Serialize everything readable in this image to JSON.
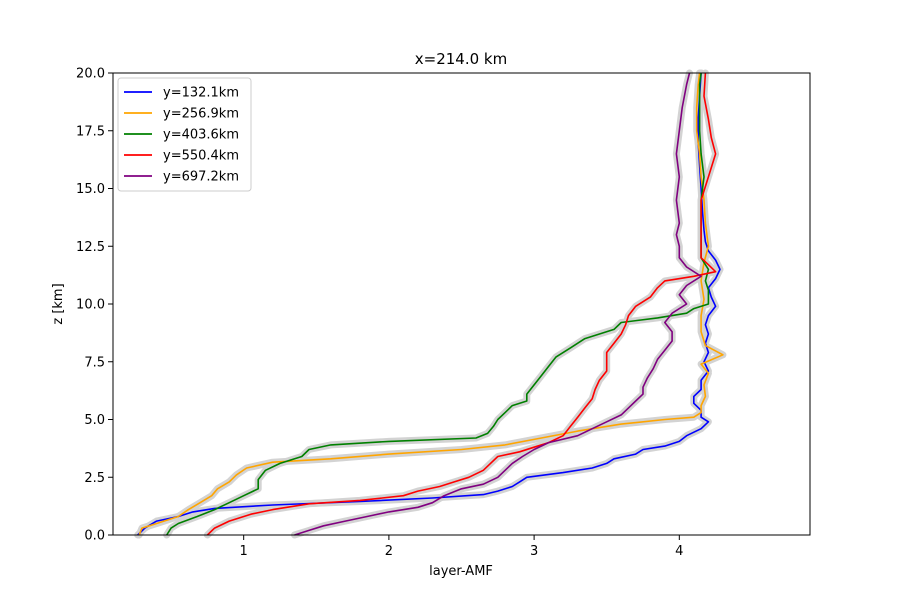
{
  "chart_data": {
    "type": "line",
    "title": "x=214.0 km",
    "xlabel": "layer-AMF",
    "ylabel": "z [km]",
    "xlim": [
      0.1,
      4.9
    ],
    "ylim": [
      0,
      20
    ],
    "xticks": [
      1,
      2,
      3,
      4
    ],
    "xtick_labels": [
      "1",
      "2",
      "3",
      "4"
    ],
    "yticks": [
      0,
      2.5,
      5,
      7.5,
      10,
      12.5,
      15,
      17.5,
      20
    ],
    "ytick_labels": [
      "0.0",
      "2.5",
      "5.0",
      "7.5",
      "10.0",
      "12.5",
      "15.0",
      "17.5",
      "20.0"
    ],
    "grid": false,
    "legend_position": "top-left",
    "uncertainty_band_color": "#d3d3d3",
    "series": [
      {
        "name": "y=132.1km",
        "color": "#0000ff",
        "points": [
          [
            0.27,
            0
          ],
          [
            0.32,
            0.3
          ],
          [
            0.4,
            0.6
          ],
          [
            0.55,
            0.8
          ],
          [
            0.65,
            1.0
          ],
          [
            0.8,
            1.15
          ],
          [
            1.2,
            1.3
          ],
          [
            1.8,
            1.45
          ],
          [
            2.3,
            1.6
          ],
          [
            2.65,
            1.75
          ],
          [
            2.75,
            1.9
          ],
          [
            2.85,
            2.1
          ],
          [
            2.9,
            2.3
          ],
          [
            2.95,
            2.5
          ],
          [
            3.2,
            2.7
          ],
          [
            3.4,
            2.9
          ],
          [
            3.5,
            3.1
          ],
          [
            3.55,
            3.3
          ],
          [
            3.7,
            3.5
          ],
          [
            3.75,
            3.7
          ],
          [
            3.9,
            3.85
          ],
          [
            4.0,
            4.05
          ],
          [
            4.05,
            4.3
          ],
          [
            4.15,
            4.6
          ],
          [
            4.2,
            4.9
          ],
          [
            4.15,
            5.1
          ],
          [
            4.15,
            5.4
          ],
          [
            4.1,
            5.7
          ],
          [
            4.1,
            6.0
          ],
          [
            4.15,
            6.3
          ],
          [
            4.15,
            6.7
          ],
          [
            4.2,
            7.1
          ],
          [
            4.17,
            7.5
          ],
          [
            4.2,
            7.9
          ],
          [
            4.18,
            8.3
          ],
          [
            4.2,
            8.7
          ],
          [
            4.18,
            9.1
          ],
          [
            4.2,
            9.5
          ],
          [
            4.25,
            9.9
          ],
          [
            4.22,
            10.3
          ],
          [
            4.2,
            10.7
          ],
          [
            4.25,
            11.1
          ],
          [
            4.28,
            11.5
          ],
          [
            4.25,
            11.9
          ],
          [
            4.2,
            12.3
          ],
          [
            4.18,
            12.7
          ],
          [
            4.17,
            13.2
          ],
          [
            4.16,
            14.0
          ],
          [
            4.15,
            15.0
          ],
          [
            4.14,
            16.0
          ],
          [
            4.13,
            17.0
          ],
          [
            4.13,
            18.0
          ],
          [
            4.14,
            19.0
          ],
          [
            4.15,
            20.0
          ]
        ]
      },
      {
        "name": "y=256.9km",
        "color": "#ffa500",
        "points": [
          [
            0.28,
            0
          ],
          [
            0.3,
            0.3
          ],
          [
            0.4,
            0.5
          ],
          [
            0.55,
            0.8
          ],
          [
            0.62,
            1.1
          ],
          [
            0.7,
            1.4
          ],
          [
            0.78,
            1.7
          ],
          [
            0.82,
            2.0
          ],
          [
            0.9,
            2.3
          ],
          [
            0.95,
            2.6
          ],
          [
            1.02,
            2.9
          ],
          [
            1.2,
            3.15
          ],
          [
            1.6,
            3.3
          ],
          [
            2.0,
            3.5
          ],
          [
            2.5,
            3.7
          ],
          [
            2.8,
            3.9
          ],
          [
            3.05,
            4.2
          ],
          [
            3.3,
            4.5
          ],
          [
            3.6,
            4.8
          ],
          [
            3.9,
            5.0
          ],
          [
            4.1,
            5.1
          ],
          [
            4.15,
            5.3
          ],
          [
            4.15,
            5.6
          ],
          [
            4.18,
            6.0
          ],
          [
            4.17,
            6.5
          ],
          [
            4.2,
            7.0
          ],
          [
            4.15,
            7.4
          ],
          [
            4.3,
            7.8
          ],
          [
            4.18,
            8.2
          ],
          [
            4.15,
            8.8
          ],
          [
            4.15,
            9.5
          ],
          [
            4.17,
            10.2
          ],
          [
            4.15,
            11.0
          ],
          [
            4.17,
            11.8
          ],
          [
            4.2,
            12.5
          ],
          [
            4.18,
            13.5
          ],
          [
            4.17,
            14.5
          ],
          [
            4.15,
            15.5
          ],
          [
            4.14,
            16.5
          ],
          [
            4.12,
            17.5
          ],
          [
            4.12,
            18.5
          ],
          [
            4.13,
            19.5
          ],
          [
            4.14,
            20.0
          ]
        ]
      },
      {
        "name": "y=403.6km",
        "color": "#008000",
        "points": [
          [
            0.47,
            0
          ],
          [
            0.5,
            0.3
          ],
          [
            0.55,
            0.5
          ],
          [
            0.68,
            0.8
          ],
          [
            0.8,
            1.1
          ],
          [
            0.9,
            1.4
          ],
          [
            1.0,
            1.7
          ],
          [
            1.1,
            2.0
          ],
          [
            1.1,
            2.4
          ],
          [
            1.15,
            2.8
          ],
          [
            1.25,
            3.1
          ],
          [
            1.4,
            3.4
          ],
          [
            1.45,
            3.7
          ],
          [
            1.6,
            3.9
          ],
          [
            2.0,
            4.05
          ],
          [
            2.6,
            4.2
          ],
          [
            2.68,
            4.4
          ],
          [
            2.72,
            4.7
          ],
          [
            2.75,
            5.0
          ],
          [
            2.8,
            5.3
          ],
          [
            2.85,
            5.6
          ],
          [
            2.95,
            5.8
          ],
          [
            2.95,
            6.1
          ],
          [
            3.0,
            6.5
          ],
          [
            3.05,
            6.9
          ],
          [
            3.1,
            7.3
          ],
          [
            3.15,
            7.7
          ],
          [
            3.25,
            8.1
          ],
          [
            3.35,
            8.5
          ],
          [
            3.55,
            8.9
          ],
          [
            3.6,
            9.2
          ],
          [
            3.85,
            9.4
          ],
          [
            4.05,
            9.6
          ],
          [
            4.1,
            9.8
          ],
          [
            4.2,
            10.0
          ],
          [
            4.2,
            10.3
          ],
          [
            4.2,
            10.6
          ],
          [
            4.18,
            11.0
          ],
          [
            4.2,
            11.5
          ],
          [
            4.15,
            12.0
          ],
          [
            4.15,
            12.6
          ],
          [
            4.15,
            13.5
          ],
          [
            4.15,
            14.5
          ],
          [
            4.17,
            15.5
          ],
          [
            4.15,
            16.5
          ],
          [
            4.14,
            17.5
          ],
          [
            4.14,
            18.5
          ],
          [
            4.14,
            19.5
          ],
          [
            4.15,
            20.0
          ]
        ]
      },
      {
        "name": "y=550.4km",
        "color": "#ff0000",
        "points": [
          [
            0.75,
            0
          ],
          [
            0.8,
            0.3
          ],
          [
            0.9,
            0.6
          ],
          [
            1.05,
            0.9
          ],
          [
            1.2,
            1.1
          ],
          [
            1.45,
            1.35
          ],
          [
            1.8,
            1.5
          ],
          [
            2.1,
            1.7
          ],
          [
            2.2,
            1.9
          ],
          [
            2.35,
            2.1
          ],
          [
            2.45,
            2.3
          ],
          [
            2.55,
            2.5
          ],
          [
            2.65,
            2.8
          ],
          [
            2.7,
            3.1
          ],
          [
            2.75,
            3.4
          ],
          [
            2.9,
            3.6
          ],
          [
            3.0,
            3.8
          ],
          [
            3.1,
            4.0
          ],
          [
            3.2,
            4.3
          ],
          [
            3.25,
            4.7
          ],
          [
            3.3,
            5.1
          ],
          [
            3.35,
            5.5
          ],
          [
            3.4,
            5.9
          ],
          [
            3.42,
            6.3
          ],
          [
            3.45,
            6.7
          ],
          [
            3.5,
            7.1
          ],
          [
            3.5,
            7.5
          ],
          [
            3.5,
            7.9
          ],
          [
            3.55,
            8.3
          ],
          [
            3.6,
            8.7
          ],
          [
            3.63,
            9.1
          ],
          [
            3.65,
            9.5
          ],
          [
            3.7,
            9.9
          ],
          [
            3.8,
            10.3
          ],
          [
            3.85,
            10.7
          ],
          [
            3.9,
            11.0
          ],
          [
            4.1,
            11.2
          ],
          [
            4.25,
            11.4
          ],
          [
            4.2,
            11.7
          ],
          [
            4.15,
            12.0
          ],
          [
            4.15,
            12.5
          ],
          [
            4.15,
            13.5
          ],
          [
            4.15,
            14.5
          ],
          [
            4.2,
            15.5
          ],
          [
            4.25,
            16.5
          ],
          [
            4.22,
            17.2
          ],
          [
            4.2,
            18.0
          ],
          [
            4.17,
            19.0
          ],
          [
            4.18,
            20.0
          ]
        ]
      },
      {
        "name": "y=697.2km",
        "color": "#800080",
        "points": [
          [
            1.35,
            0
          ],
          [
            1.45,
            0.2
          ],
          [
            1.55,
            0.4
          ],
          [
            1.7,
            0.6
          ],
          [
            1.85,
            0.8
          ],
          [
            2.0,
            1.0
          ],
          [
            2.2,
            1.2
          ],
          [
            2.3,
            1.4
          ],
          [
            2.38,
            1.7
          ],
          [
            2.5,
            2.0
          ],
          [
            2.65,
            2.2
          ],
          [
            2.75,
            2.5
          ],
          [
            2.8,
            2.8
          ],
          [
            2.85,
            3.1
          ],
          [
            2.92,
            3.4
          ],
          [
            3.0,
            3.7
          ],
          [
            3.1,
            4.0
          ],
          [
            3.3,
            4.3
          ],
          [
            3.4,
            4.6
          ],
          [
            3.5,
            4.9
          ],
          [
            3.6,
            5.2
          ],
          [
            3.65,
            5.5
          ],
          [
            3.7,
            5.8
          ],
          [
            3.75,
            6.1
          ],
          [
            3.75,
            6.4
          ],
          [
            3.78,
            6.8
          ],
          [
            3.82,
            7.2
          ],
          [
            3.85,
            7.6
          ],
          [
            3.9,
            8.0
          ],
          [
            3.95,
            8.4
          ],
          [
            3.95,
            8.8
          ],
          [
            3.9,
            9.2
          ],
          [
            3.95,
            9.6
          ],
          [
            4.05,
            10.0
          ],
          [
            4.0,
            10.4
          ],
          [
            4.05,
            10.8
          ],
          [
            4.15,
            11.2
          ],
          [
            4.05,
            11.6
          ],
          [
            4.0,
            12.0
          ],
          [
            4.0,
            12.5
          ],
          [
            3.98,
            13.0
          ],
          [
            4.0,
            13.5
          ],
          [
            3.98,
            14.5
          ],
          [
            4.0,
            15.5
          ],
          [
            3.98,
            16.5
          ],
          [
            4.0,
            17.5
          ],
          [
            4.02,
            18.5
          ],
          [
            4.05,
            19.5
          ],
          [
            4.07,
            20.0
          ]
        ]
      }
    ]
  }
}
